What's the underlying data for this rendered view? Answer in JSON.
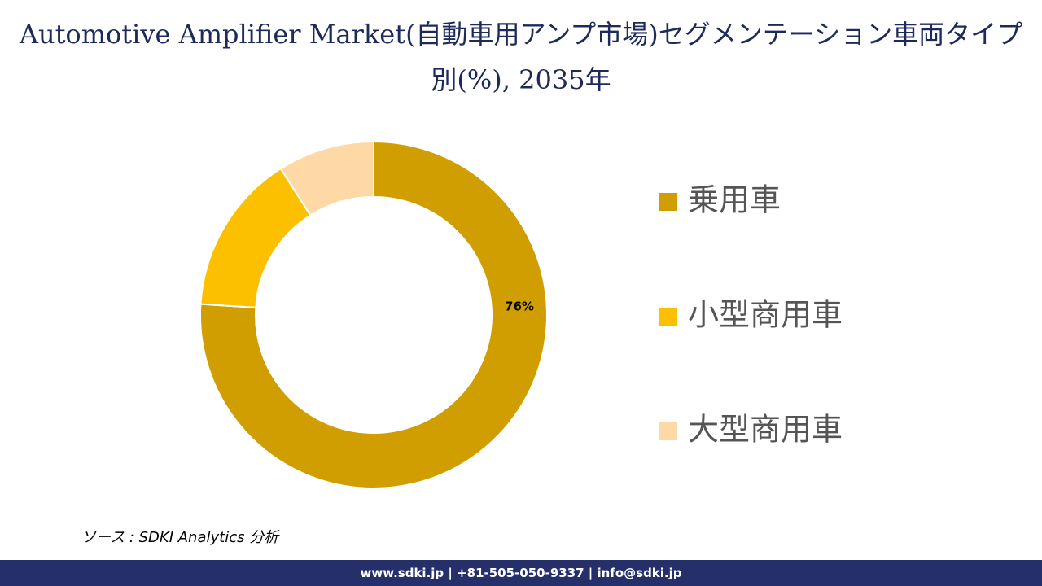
{
  "chart_data": {
    "type": "donut",
    "title": "Automotive Amplifier Market(自動車用アンプ市場)セグメンテーション車両タイプ別(%), 2035年",
    "categories": [
      "乗用車",
      "小型商用車",
      "大型商用車"
    ],
    "values": [
      76,
      15,
      9
    ],
    "value_labels": [
      "76%",
      null,
      null
    ],
    "colors": [
      "#d09e00",
      "#fcc000",
      "#fed9a6"
    ],
    "source": "ソース : SDKI Analytics 分析",
    "footer": "www.sdki.jp | +81-505-050-9337 | info@sdki.jp"
  }
}
